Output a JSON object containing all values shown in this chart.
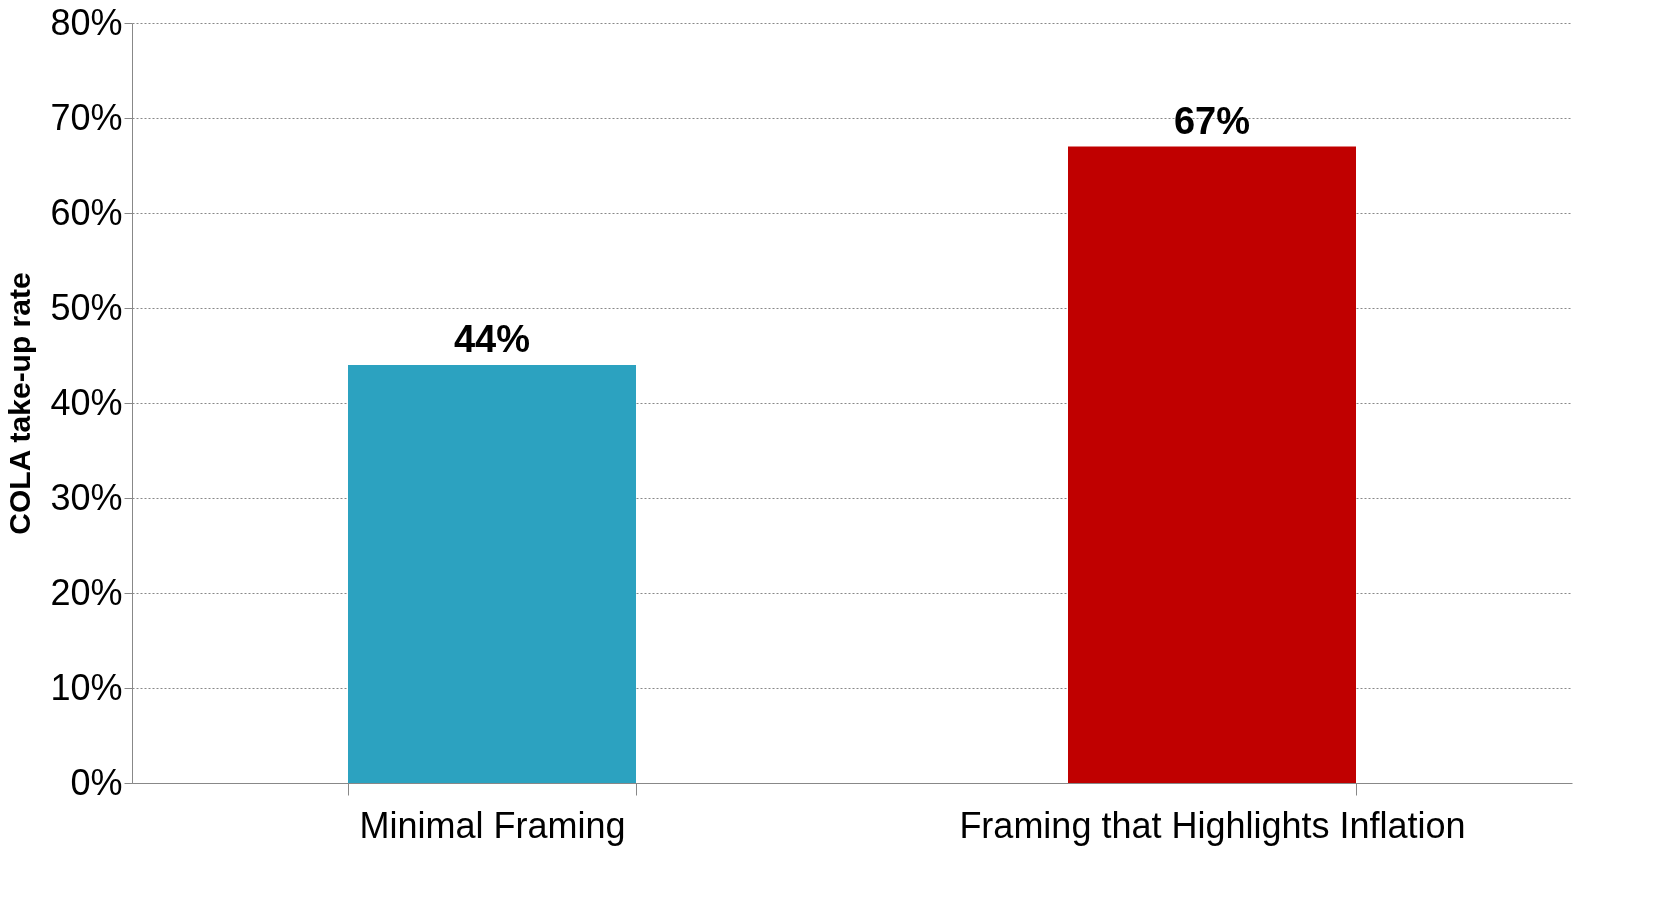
{
  "chart_data": {
    "type": "bar",
    "ylabel": "COLA take-up rate",
    "categories": [
      "Minimal Framing",
      "Framing that Highlights Inflation"
    ],
    "values": [
      44,
      67
    ],
    "colors": [
      "#2ca2c0",
      "#c00000"
    ],
    "value_labels": [
      "44%",
      "67%"
    ],
    "ylim": [
      0,
      80
    ],
    "yticks": [
      {
        "value": 0,
        "label": "0%"
      },
      {
        "value": 10,
        "label": "10%"
      },
      {
        "value": 20,
        "label": "20%"
      },
      {
        "value": 30,
        "label": "30%"
      },
      {
        "value": 40,
        "label": "40%"
      },
      {
        "value": 50,
        "label": "50%"
      },
      {
        "value": 60,
        "label": "60%"
      },
      {
        "value": 70,
        "label": "70%"
      },
      {
        "value": 80,
        "label": "80%"
      }
    ],
    "grid": "y",
    "legend": false
  }
}
